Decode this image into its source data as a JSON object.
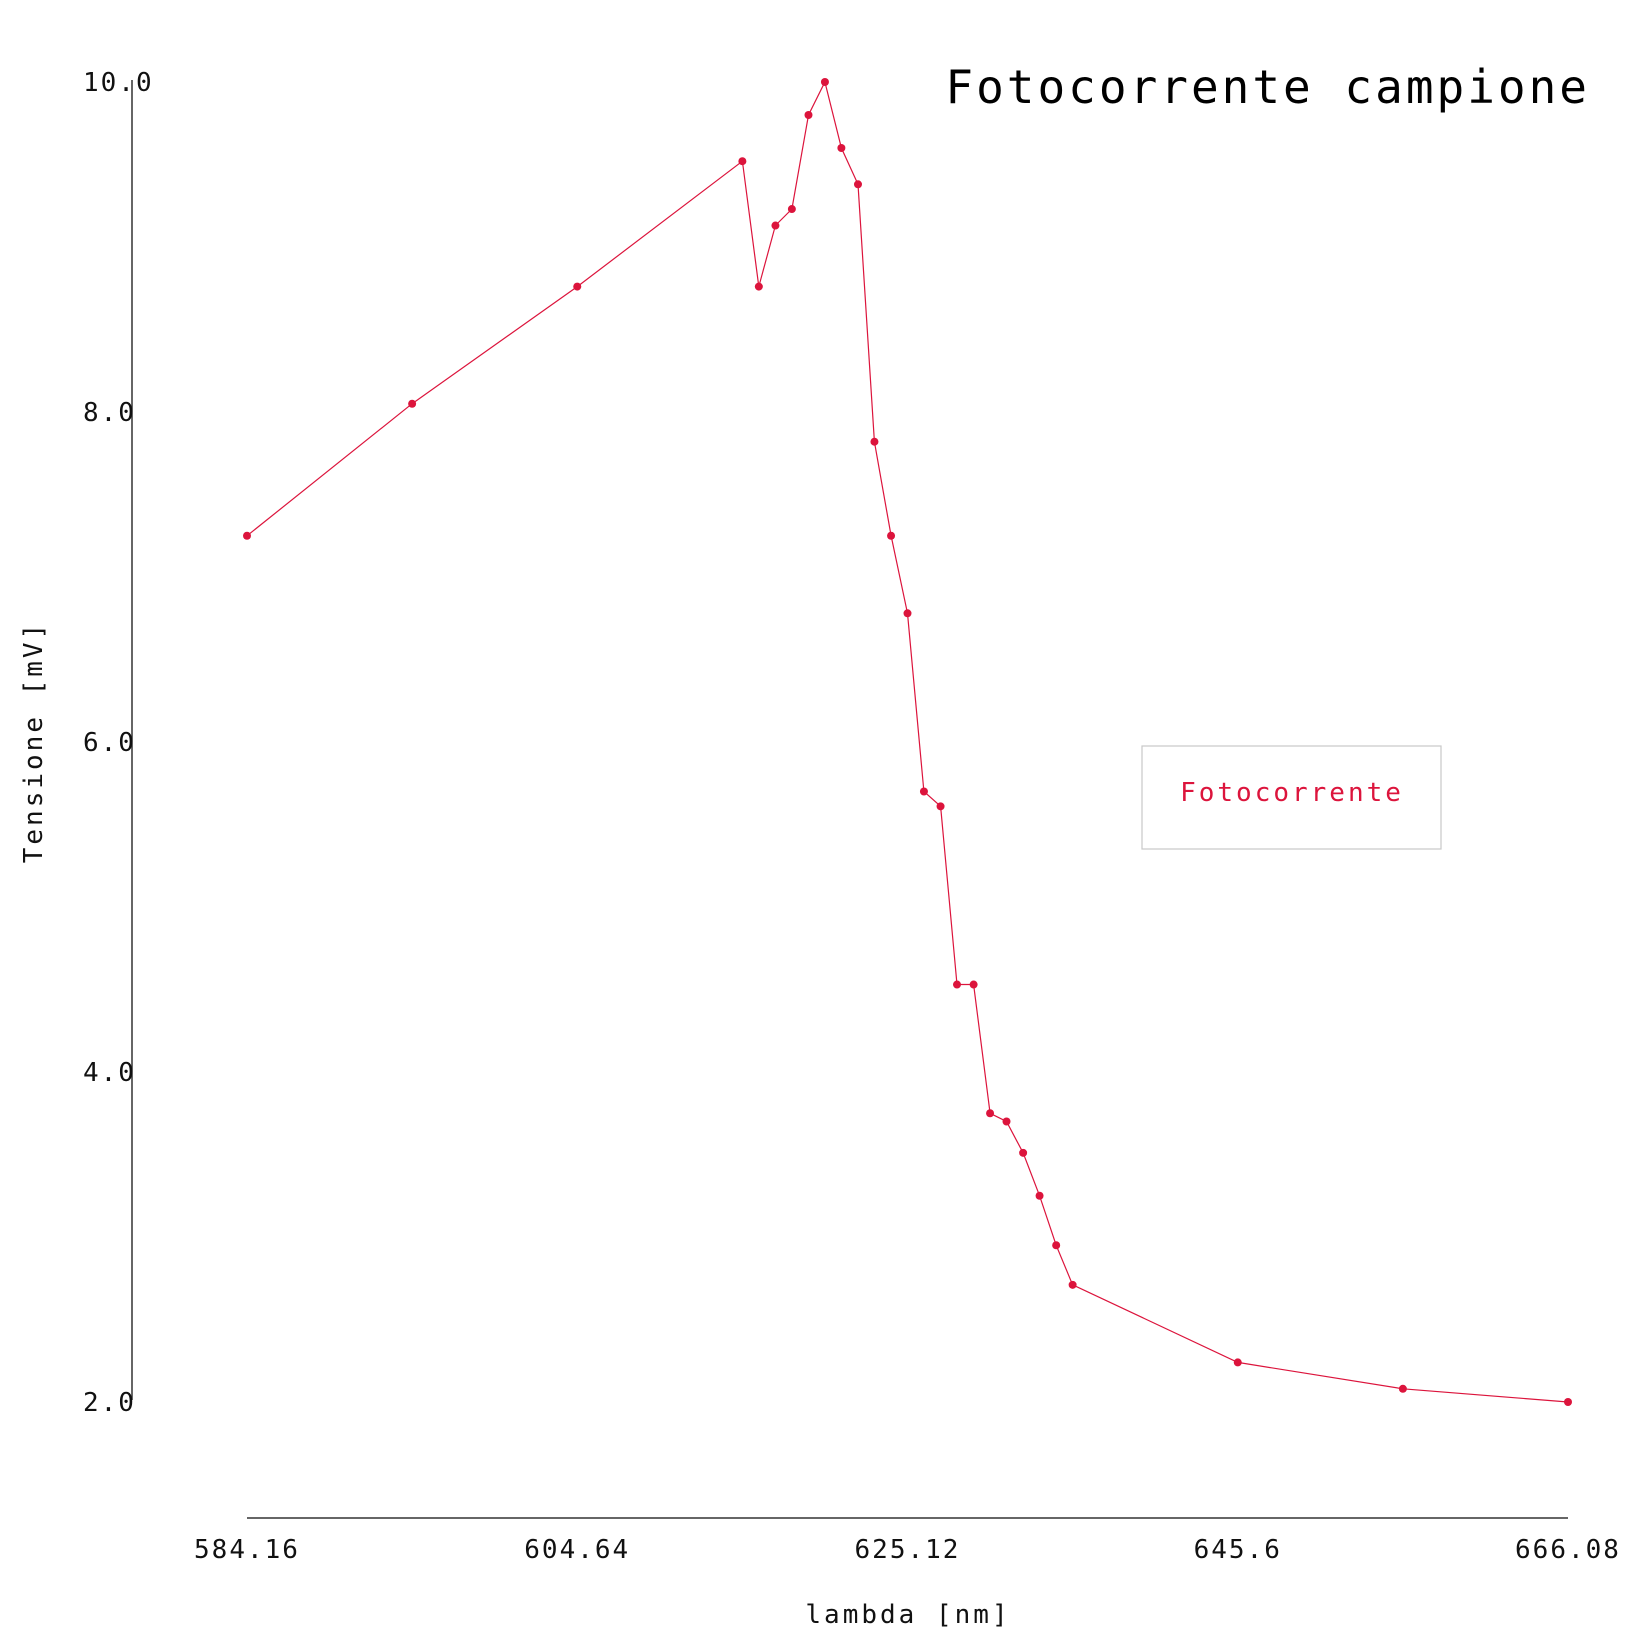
{
  "chart_data": {
    "type": "line",
    "title": "Fotocorrente campione",
    "xlabel": "lambda [nm]",
    "ylabel": "Tensione [mV]",
    "x_ticks": [
      "584.16",
      "604.64",
      "625.12",
      "645.6",
      "666.08"
    ],
    "y_ticks": [
      "2.0",
      "4.0",
      "6.0",
      "8.0",
      "10.0"
    ],
    "xlim": [
      584.16,
      666.08
    ],
    "ylim": [
      2.0,
      10.0
    ],
    "legend_position": "right",
    "grid": false,
    "series": [
      {
        "name": "Fotocorrente",
        "color": "#dc143c",
        "x": [
          584.16,
          594.4,
          604.64,
          614.88,
          615.9,
          616.93,
          617.95,
          618.98,
          620.0,
          621.02,
          622.05,
          623.07,
          624.1,
          625.12,
          626.14,
          627.17,
          628.19,
          629.22,
          630.24,
          631.26,
          632.29,
          633.31,
          634.34,
          635.36,
          645.6,
          655.84,
          666.08
        ],
        "values": [
          7.25,
          8.05,
          8.76,
          9.52,
          8.76,
          9.13,
          9.23,
          9.8,
          10.0,
          9.6,
          9.38,
          7.82,
          7.25,
          6.78,
          5.7,
          5.61,
          4.53,
          4.53,
          3.75,
          3.7,
          3.51,
          3.25,
          2.95,
          2.71,
          2.24,
          2.08,
          2.0
        ]
      }
    ]
  }
}
